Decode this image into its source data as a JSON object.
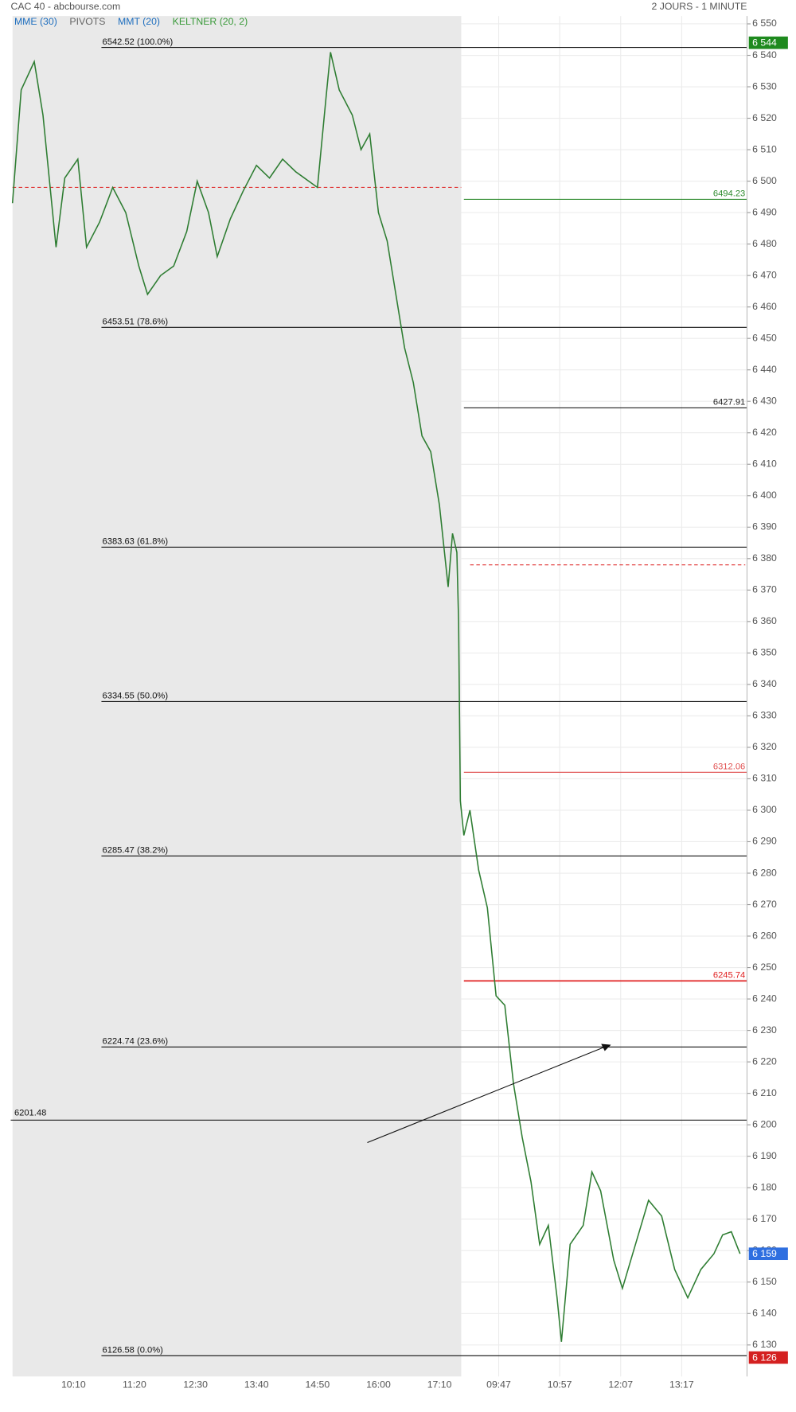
{
  "chart_data": {
    "type": "line",
    "title": "CAC 40 - abcbourse.com",
    "subtitle": "2 JOURS - 1 MINUTE",
    "indicators": [
      {
        "label": "MME (30)",
        "color": "#1f6fbf"
      },
      {
        "label": "PIVOTS",
        "color": "#666666"
      },
      {
        "label": "MMT (20)",
        "color": "#1f6fbf"
      },
      {
        "label": "KELTNER (20, 2)",
        "color": "#3a9a3a"
      }
    ],
    "x": [
      0,
      10,
      25,
      35,
      50,
      60,
      75,
      85,
      100,
      115,
      130,
      145,
      155,
      170,
      185,
      200,
      212,
      225,
      235,
      250,
      265,
      280,
      295,
      310,
      325,
      340,
      350,
      360,
      365,
      375,
      390,
      400,
      410,
      420,
      430,
      440,
      450,
      460,
      470,
      480,
      490,
      500,
      505,
      510,
      512,
      514,
      518,
      525,
      535,
      545,
      555,
      565,
      575,
      585,
      595,
      605,
      615,
      625,
      630,
      640,
      655,
      665,
      675,
      690,
      700,
      715,
      730,
      745,
      760,
      775,
      790,
      805,
      815,
      825,
      835
    ],
    "series": [
      {
        "name": "CAC 40",
        "color": "#2e7d32",
        "values": [
          6493,
          6529,
          6538,
          6521,
          6479,
          6501,
          6507,
          6479,
          6487,
          6498,
          6490,
          6473,
          6464,
          6470,
          6473,
          6484,
          6500,
          6490,
          6476,
          6488,
          6497,
          6505,
          6501,
          6507,
          6503,
          6500,
          6498,
          6527,
          6541,
          6529,
          6521,
          6510,
          6515,
          6490,
          6481,
          6464,
          6447,
          6436,
          6419,
          6414,
          6397,
          6371,
          6388,
          6382,
          6360,
          6303,
          6292,
          6300,
          6281,
          6269,
          6241,
          6238,
          6213,
          6196,
          6182,
          6162,
          6168,
          6145,
          6131,
          6162,
          6168,
          6185,
          6179,
          6157,
          6148,
          6162,
          6176,
          6171,
          6154,
          6145,
          6154,
          6159,
          6165,
          6166,
          6159
        ]
      }
    ],
    "xlim": [
      -2,
      843
    ],
    "xticks": [
      {
        "value": 70,
        "label": "10:10"
      },
      {
        "value": 140,
        "label": "11:20"
      },
      {
        "value": 210,
        "label": "12:30"
      },
      {
        "value": 280,
        "label": "13:40"
      },
      {
        "value": 350,
        "label": "14:50"
      },
      {
        "value": 420,
        "label": "16:00"
      },
      {
        "value": 490,
        "label": "17:10"
      },
      {
        "value": 558,
        "label": "09:47"
      },
      {
        "value": 628,
        "label": "10:57"
      },
      {
        "value": 698,
        "label": "12:07"
      },
      {
        "value": 768,
        "label": "13:17"
      }
    ],
    "previous_session_end": 515,
    "ylim": [
      6120,
      6552.5
    ],
    "yticks": [
      {
        "value": 6130,
        "label": "6 130"
      },
      {
        "value": 6140,
        "label": "6 140"
      },
      {
        "value": 6150,
        "label": "6 150"
      },
      {
        "value": 6160,
        "label": "6 160"
      },
      {
        "value": 6170,
        "label": "6 170"
      },
      {
        "value": 6180,
        "label": "6 180"
      },
      {
        "value": 6190,
        "label": "6 190"
      },
      {
        "value": 6200,
        "label": "6 200"
      },
      {
        "value": 6210,
        "label": "6 210"
      },
      {
        "value": 6220,
        "label": "6 220"
      },
      {
        "value": 6230,
        "label": "6 230"
      },
      {
        "value": 6240,
        "label": "6 240"
      },
      {
        "value": 6250,
        "label": "6 250"
      },
      {
        "value": 6260,
        "label": "6 260"
      },
      {
        "value": 6270,
        "label": "6 270"
      },
      {
        "value": 6280,
        "label": "6 280"
      },
      {
        "value": 6290,
        "label": "6 290"
      },
      {
        "value": 6300,
        "label": "6 300"
      },
      {
        "value": 6310,
        "label": "6 310"
      },
      {
        "value": 6320,
        "label": "6 320"
      },
      {
        "value": 6330,
        "label": "6 330"
      },
      {
        "value": 6340,
        "label": "6 340"
      },
      {
        "value": 6350,
        "label": "6 350"
      },
      {
        "value": 6360,
        "label": "6 360"
      },
      {
        "value": 6370,
        "label": "6 370"
      },
      {
        "value": 6380,
        "label": "6 380"
      },
      {
        "value": 6390,
        "label": "6 390"
      },
      {
        "value": 6400,
        "label": "6 400"
      },
      {
        "value": 6410,
        "label": "6 410"
      },
      {
        "value": 6420,
        "label": "6 420"
      },
      {
        "value": 6430,
        "label": "6 430"
      },
      {
        "value": 6440,
        "label": "6 440"
      },
      {
        "value": 6450,
        "label": "6 450"
      },
      {
        "value": 6460,
        "label": "6 460"
      },
      {
        "value": 6470,
        "label": "6 470"
      },
      {
        "value": 6480,
        "label": "6 480"
      },
      {
        "value": 6490,
        "label": "6 490"
      },
      {
        "value": 6500,
        "label": "6 500"
      },
      {
        "value": 6510,
        "label": "6 510"
      },
      {
        "value": 6520,
        "label": "6 520"
      },
      {
        "value": 6530,
        "label": "6 530"
      },
      {
        "value": 6540,
        "label": "6 540"
      },
      {
        "value": 6550,
        "label": "6 550"
      }
    ],
    "grid": true,
    "fibonacci": [
      {
        "value": 6542.52,
        "label": "6542.52  (100.0%)"
      },
      {
        "value": 6453.51,
        "label": "6453.51  (78.6%)"
      },
      {
        "value": 6383.63,
        "label": "6383.63  (61.8%)"
      },
      {
        "value": 6334.55,
        "label": "6334.55  (50.0%)"
      },
      {
        "value": 6285.47,
        "label": "6285.47  (38.2%)"
      },
      {
        "value": 6224.74,
        "label": "6224.74  (23.6%)"
      },
      {
        "value": 6126.58,
        "label": "6126.58  (0.0%)"
      }
    ],
    "levels": [
      {
        "value": 6494.23,
        "label": "6494.23",
        "color": "#2e8b2e"
      },
      {
        "value": 6427.91,
        "label": "6427.91",
        "color": "#222222"
      },
      {
        "value": 6312.06,
        "label": "6312.06",
        "color": "#e05050"
      },
      {
        "value": 6245.74,
        "label": "6245.74",
        "color": "#e02020"
      }
    ],
    "support": {
      "value": 6201.48,
      "label": "6201.48",
      "color": "#222222"
    },
    "pivots": [
      {
        "value": 6498,
        "color": "#e03030",
        "session": 1
      },
      {
        "value": 6378,
        "color": "#e03030",
        "session": 2
      }
    ],
    "badges": [
      {
        "value": 6544,
        "label": "6 544",
        "color": "#1e8a1e"
      },
      {
        "value": 6159,
        "label": "6 159",
        "color": "#2f6fe0"
      },
      {
        "value": 6126,
        "label": "6 126",
        "color": "#d42020"
      }
    ]
  }
}
